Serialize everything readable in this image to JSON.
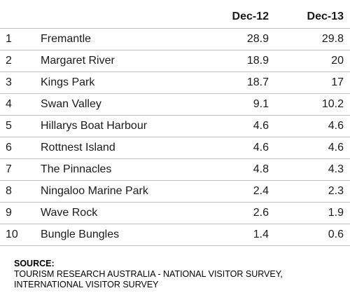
{
  "table": {
    "headers": {
      "col1": "Dec-12",
      "col2": "Dec-13"
    },
    "rows": [
      {
        "rank": "1",
        "name": "Fremantle",
        "dec12": "28.9",
        "dec13": "29.8"
      },
      {
        "rank": "2",
        "name": "Margaret River",
        "dec12": "18.9",
        "dec13": "20"
      },
      {
        "rank": "3",
        "name": "Kings Park",
        "dec12": "18.7",
        "dec13": "17"
      },
      {
        "rank": "4",
        "name": "Swan Valley",
        "dec12": "9.1",
        "dec13": "10.2"
      },
      {
        "rank": "5",
        "name": "Hillarys Boat Harbour",
        "dec12": "4.6",
        "dec13": "4.6"
      },
      {
        "rank": "6",
        "name": "Rottnest Island",
        "dec12": "4.6",
        "dec13": "4.6"
      },
      {
        "rank": "7",
        "name": "The Pinnacles",
        "dec12": "4.8",
        "dec13": "4.3"
      },
      {
        "rank": "8",
        "name": "Ningaloo Marine Park",
        "dec12": "2.4",
        "dec13": "2.3"
      },
      {
        "rank": "9",
        "name": "Wave Rock",
        "dec12": "2.6",
        "dec13": "1.9"
      },
      {
        "rank": "10",
        "name": "Bungle Bungles",
        "dec12": "1.4",
        "dec13": "0.6"
      }
    ]
  },
  "source": {
    "title": "SOURCE:",
    "text": "TOURISM RESEARCH AUSTRALIA - NATIONAL VISITOR SURVEY, INTERNATIONAL VISITOR SURVEY"
  }
}
